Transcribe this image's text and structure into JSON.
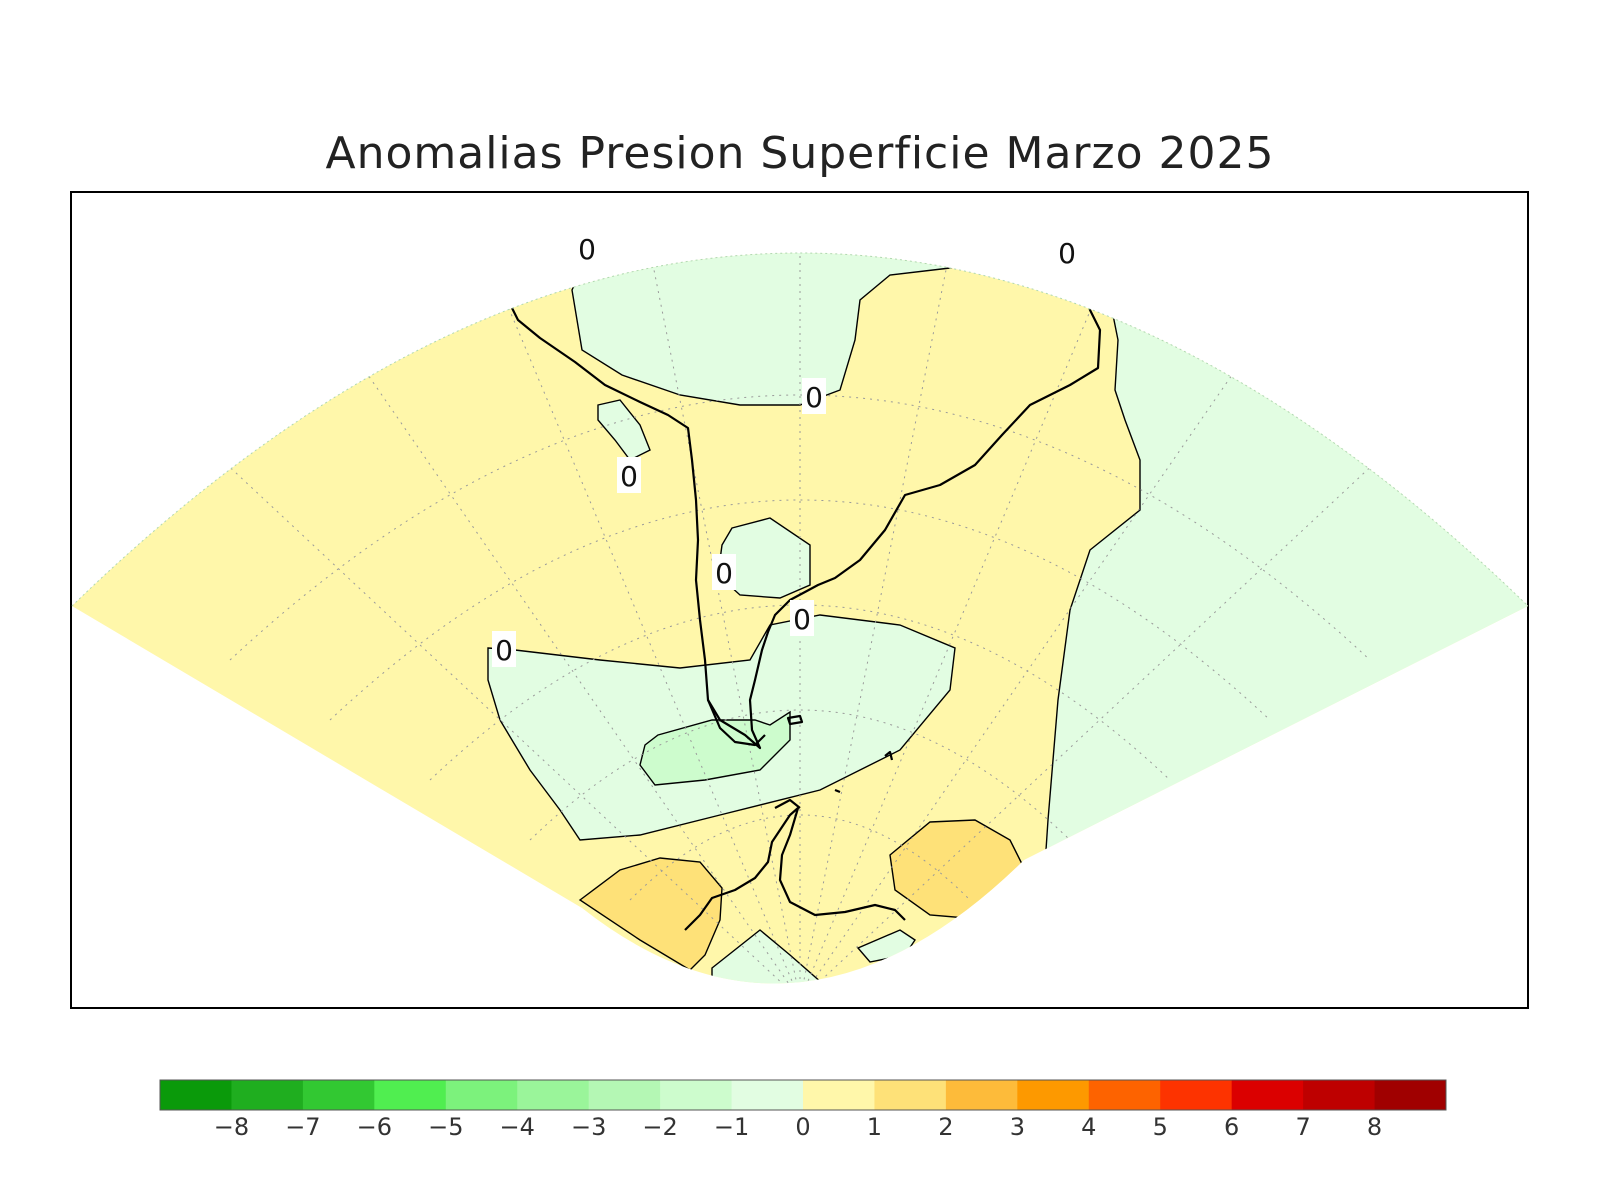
{
  "title": "Anomalias Presion Superficie Marzo 2025",
  "contour_label": "0",
  "legend": {
    "colors": [
      "#0a9a0a",
      "#1fae1f",
      "#32c832",
      "#50ee50",
      "#7cf27c",
      "#9af59a",
      "#b4f7b4",
      "#cdfccd",
      "#e2fde2",
      "#fff7aa",
      "#fee178",
      "#fdbb3a",
      "#fd9900",
      "#fd6300",
      "#fd3300",
      "#db0000",
      "#be0000",
      "#a00000"
    ],
    "ticks": [
      "−8",
      "−7",
      "−6",
      "−5",
      "−4",
      "−3",
      "−2",
      "−1",
      "0",
      "1",
      "2",
      "3",
      "4",
      "5",
      "6",
      "7",
      "8"
    ]
  },
  "field_colors": {
    "zero_to_one": "#fff7aa",
    "one_to_two": "#fee178",
    "minus_one_to_zero": "#e2fde2",
    "minus_two_to_minus_one": "#cdfccd"
  }
}
